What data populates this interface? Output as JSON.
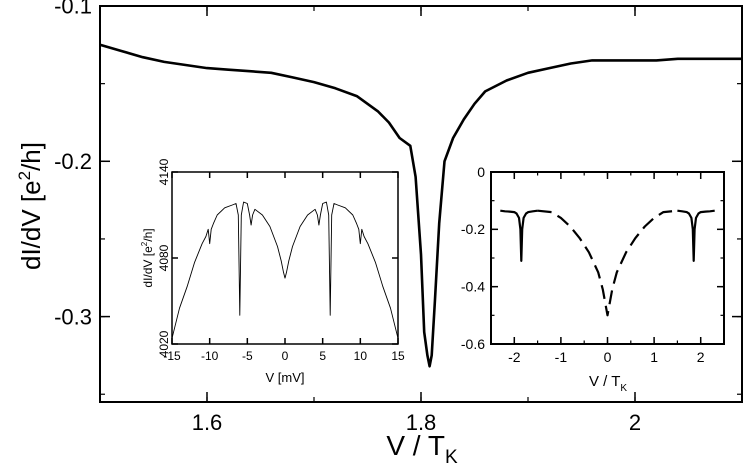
{
  "chart_data": [
    {
      "id": "main",
      "type": "line",
      "title": "",
      "xlabel": "V / T",
      "xlabel_sub": "K",
      "ylabel": "dI/dV  [e",
      "ylabel_sup": "2",
      "ylabel_tail": "/h]",
      "xlim": [
        1.5,
        2.1
      ],
      "ylim": [
        -0.355,
        -0.1
      ],
      "xticks": [
        1.6,
        1.8,
        2.0
      ],
      "xtick_labels": [
        "1.6",
        "1.8",
        "2"
      ],
      "yticks": [
        -0.1,
        -0.2,
        -0.3
      ],
      "ytick_labels": [
        "-0.1",
        "-0.2",
        "-0.3"
      ],
      "series": [
        {
          "name": "dI/dV",
          "style": "solid",
          "x": [
            1.5,
            1.52,
            1.54,
            1.56,
            1.58,
            1.6,
            1.62,
            1.64,
            1.66,
            1.68,
            1.7,
            1.72,
            1.74,
            1.75,
            1.76,
            1.77,
            1.78,
            1.79,
            1.795,
            1.8,
            1.803,
            1.806,
            1.808,
            1.81,
            1.813,
            1.817,
            1.822,
            1.83,
            1.84,
            1.85,
            1.86,
            1.88,
            1.9,
            1.92,
            1.94,
            1.96,
            1.98,
            2.0,
            2.02,
            2.04,
            2.06,
            2.08,
            2.1
          ],
          "y": [
            -0.125,
            -0.129,
            -0.133,
            -0.136,
            -0.138,
            -0.14,
            -0.141,
            -0.142,
            -0.143,
            -0.146,
            -0.149,
            -0.153,
            -0.158,
            -0.163,
            -0.168,
            -0.175,
            -0.185,
            -0.19,
            -0.21,
            -0.26,
            -0.31,
            -0.325,
            -0.332,
            -0.325,
            -0.29,
            -0.24,
            -0.2,
            -0.185,
            -0.173,
            -0.163,
            -0.155,
            -0.148,
            -0.143,
            -0.14,
            -0.137,
            -0.135,
            -0.135,
            -0.135,
            -0.135,
            -0.134,
            -0.134,
            -0.134,
            -0.134
          ]
        }
      ]
    },
    {
      "id": "inset-left",
      "type": "line",
      "title": "",
      "xlabel": "V [mV]",
      "ylabel": "dI/dV [e",
      "ylabel_sup": "2",
      "ylabel_tail": "/h]",
      "xlim": [
        -15,
        15
      ],
      "ylim": [
        4020,
        4140
      ],
      "xticks": [
        -15,
        -10,
        -5,
        0,
        5,
        10,
        15
      ],
      "xtick_labels": [
        "-15",
        "-10",
        "-5",
        "0",
        "5",
        "10",
        "15"
      ],
      "yticks": [
        4020,
        4080,
        4140
      ],
      "ytick_labels": [
        "4020",
        "4080",
        "4140"
      ],
      "series": [
        {
          "name": "dI/dV",
          "style": "thin",
          "x": [
            -15,
            -14,
            -13,
            -12,
            -11,
            -10.5,
            -10.2,
            -10,
            -9.8,
            -9.5,
            -9,
            -8,
            -7,
            -6.5,
            -6.2,
            -6.0,
            -5.8,
            -5.6,
            -5.5,
            -5,
            -4.7,
            -4.5,
            -4.3,
            -4,
            -3,
            -2,
            -1,
            -0.5,
            -0.2,
            0,
            0.2,
            0.5,
            1,
            2,
            3,
            4,
            4.3,
            4.5,
            4.7,
            5,
            5.5,
            5.6,
            5.8,
            6.0,
            6.2,
            6.5,
            7,
            8,
            9,
            9.5,
            9.8,
            10,
            10.2,
            10.5,
            11,
            12,
            13,
            14,
            15
          ],
          "y": [
            4024,
            4045,
            4060,
            4077,
            4090,
            4095,
            4100,
            4090,
            4100,
            4104,
            4110,
            4115,
            4117,
            4118,
            4110,
            4040,
            4110,
            4116,
            4119,
            4118,
            4110,
            4103,
            4110,
            4114,
            4110,
            4102,
            4088,
            4078,
            4070,
            4066,
            4070,
            4078,
            4088,
            4102,
            4110,
            4114,
            4110,
            4103,
            4110,
            4118,
            4119,
            4116,
            4110,
            4040,
            4110,
            4118,
            4117,
            4115,
            4110,
            4104,
            4100,
            4090,
            4100,
            4095,
            4090,
            4077,
            4060,
            4045,
            4024
          ]
        }
      ]
    },
    {
      "id": "inset-right",
      "type": "line",
      "title": "",
      "xlabel": "V / T",
      "xlabel_sub": "K",
      "ylabel": "",
      "xlim": [
        -2.5,
        2.5
      ],
      "ylim": [
        -0.6,
        0
      ],
      "xticks": [
        -2,
        -1,
        0,
        1,
        2
      ],
      "xtick_labels": [
        "-2",
        "-1",
        "0",
        "1",
        "2"
      ],
      "yticks": [
        0,
        -0.2,
        -0.4,
        -0.6
      ],
      "ytick_labels": [
        "0",
        "-0.2",
        "-0.4",
        "-0.6"
      ],
      "series": [
        {
          "name": "dashed",
          "style": "dashed",
          "x": [
            -1.5,
            -1.2,
            -1.0,
            -0.8,
            -0.6,
            -0.4,
            -0.2,
            -0.1,
            0,
            0.1,
            0.2,
            0.4,
            0.6,
            0.8,
            1.0,
            1.2,
            1.5
          ],
          "y": [
            -0.135,
            -0.14,
            -0.16,
            -0.19,
            -0.23,
            -0.28,
            -0.35,
            -0.41,
            -0.5,
            -0.41,
            -0.35,
            -0.28,
            -0.23,
            -0.19,
            -0.16,
            -0.14,
            -0.135
          ]
        },
        {
          "name": "solid-left",
          "style": "solid",
          "x": [
            -2.3,
            -2.2,
            -2.1,
            -2.0,
            -1.95,
            -1.9,
            -1.87,
            -1.85,
            -1.83,
            -1.8,
            -1.75,
            -1.7,
            -1.6,
            -1.5
          ],
          "y": [
            -0.135,
            -0.137,
            -0.138,
            -0.14,
            -0.145,
            -0.16,
            -0.2,
            -0.31,
            -0.2,
            -0.16,
            -0.145,
            -0.14,
            -0.137,
            -0.135
          ]
        },
        {
          "name": "solid-right",
          "style": "solid",
          "x": [
            1.5,
            1.6,
            1.7,
            1.75,
            1.8,
            1.83,
            1.85,
            1.87,
            1.9,
            1.95,
            2.0,
            2.1,
            2.2,
            2.3
          ],
          "y": [
            -0.135,
            -0.137,
            -0.14,
            -0.145,
            -0.16,
            -0.2,
            -0.31,
            -0.2,
            -0.16,
            -0.145,
            -0.14,
            -0.138,
            -0.137,
            -0.135
          ]
        }
      ]
    }
  ]
}
